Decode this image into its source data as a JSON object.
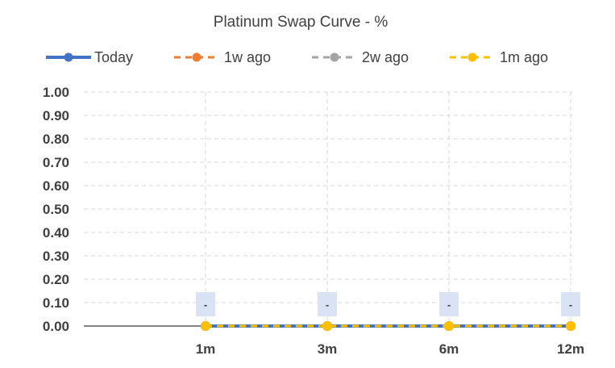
{
  "chart_data": {
    "type": "line",
    "title": "Platinum Swap Curve - %",
    "xlabel": "",
    "ylabel": "",
    "categories": [
      "1m",
      "3m",
      "6m",
      "12m"
    ],
    "ylim": [
      0,
      1
    ],
    "yticks": [
      "1.00",
      "0.90",
      "0.80",
      "0.70",
      "0.60",
      "0.50",
      "0.40",
      "0.30",
      "0.20",
      "0.10",
      "0.00"
    ],
    "grid": true,
    "legend_position": "top",
    "series": [
      {
        "name": "Today",
        "values": [
          0,
          0,
          0,
          0
        ],
        "color": "#4472C4",
        "style": "solid"
      },
      {
        "name": "1w ago",
        "values": [
          0,
          0,
          0,
          0
        ],
        "color": "#ED7D31",
        "style": "dashed"
      },
      {
        "name": "2w ago",
        "values": [
          0,
          0,
          0,
          0
        ],
        "color": "#A5A5A5",
        "style": "dashed"
      },
      {
        "name": "1m ago",
        "values": [
          0,
          0,
          0,
          0
        ],
        "color": "#FFC000",
        "style": "dashed"
      }
    ],
    "data_labels": [
      "-",
      "-",
      "-",
      "-"
    ]
  }
}
